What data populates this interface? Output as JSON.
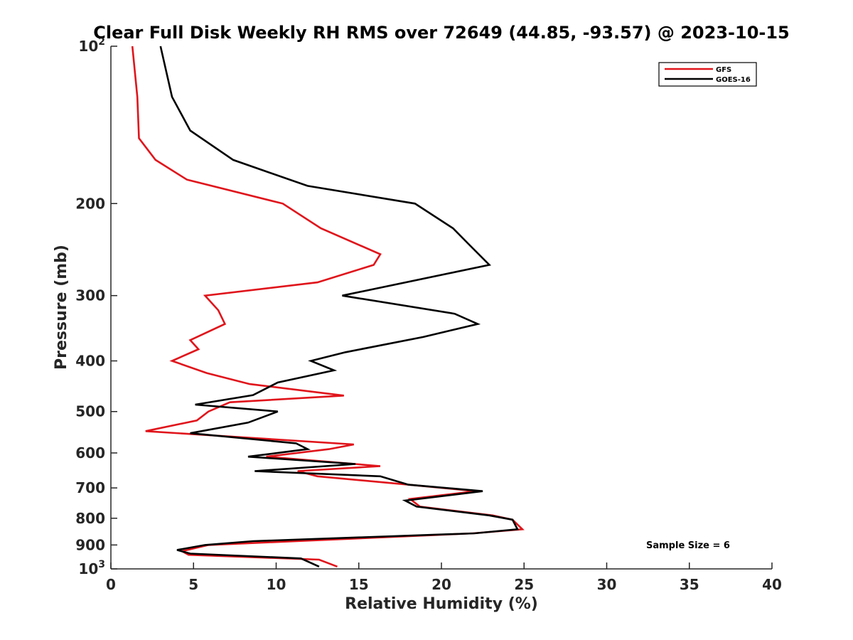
{
  "chart_data": {
    "type": "line",
    "title": "Clear Full Disk Weekly RH RMS over 72649 (44.85, -93.57) @ 2023-10-15",
    "xlabel": "Relative Humidity (%)",
    "ylabel": "Pressure (mb)",
    "xlim": [
      0,
      40
    ],
    "ylim": [
      100,
      1000
    ],
    "yscale": "log",
    "y_reversed": true,
    "x_ticks": [
      0,
      5,
      10,
      15,
      20,
      25,
      30,
      35,
      40
    ],
    "x_tick_labels": [
      "0",
      "5",
      "10",
      "15",
      "20",
      "25",
      "30",
      "35",
      "40"
    ],
    "y_ticks": [
      100,
      200,
      300,
      400,
      500,
      600,
      700,
      800,
      900,
      1000
    ],
    "y_tick_labels": [
      {
        "base": "10",
        "exp": "2"
      },
      {
        "base": "200",
        "exp": ""
      },
      {
        "base": "300",
        "exp": ""
      },
      {
        "base": "400",
        "exp": ""
      },
      {
        "base": "500",
        "exp": ""
      },
      {
        "base": "600",
        "exp": ""
      },
      {
        "base": "700",
        "exp": ""
      },
      {
        "base": "800",
        "exp": ""
      },
      {
        "base": "900",
        "exp": ""
      },
      {
        "base": "10",
        "exp": "3"
      }
    ],
    "grid": false,
    "legend_position": "top-right",
    "annotation": "Sample Size = 6",
    "series": [
      {
        "name": "GFS",
        "color": "#e0141b",
        "points": [
          [
            1.3,
            100
          ],
          [
            1.6,
            125
          ],
          [
            1.7,
            150
          ],
          [
            2.7,
            165
          ],
          [
            4.6,
            180
          ],
          [
            10.4,
            200
          ],
          [
            12.7,
            223
          ],
          [
            16.3,
            250
          ],
          [
            15.9,
            262
          ],
          [
            12.5,
            283
          ],
          [
            5.7,
            300
          ],
          [
            6.5,
            320
          ],
          [
            6.9,
            340
          ],
          [
            4.8,
            365
          ],
          [
            5.3,
            380
          ],
          [
            3.7,
            400
          ],
          [
            5.8,
            422
          ],
          [
            8.4,
            443
          ],
          [
            14.1,
            466
          ],
          [
            7.2,
            480
          ],
          [
            5.9,
            500
          ],
          [
            5.2,
            520
          ],
          [
            2.1,
            545
          ],
          [
            14.7,
            578
          ],
          [
            13.2,
            590
          ],
          [
            9.4,
            610
          ],
          [
            16.3,
            636
          ],
          [
            11.3,
            650
          ],
          [
            12.5,
            665
          ],
          [
            18.0,
            690
          ],
          [
            22.1,
            710
          ],
          [
            18.1,
            735
          ],
          [
            18.7,
            760
          ],
          [
            23.1,
            790
          ],
          [
            24.3,
            805
          ],
          [
            24.9,
            840
          ],
          [
            21.9,
            855
          ],
          [
            5.9,
            900
          ],
          [
            4.3,
            925
          ],
          [
            4.7,
            940
          ],
          [
            12.6,
            960
          ],
          [
            13.7,
            990
          ]
        ]
      },
      {
        "name": "GOES-16",
        "color": "#000000",
        "points": [
          [
            3.0,
            100
          ],
          [
            3.7,
            125
          ],
          [
            4.8,
            145
          ],
          [
            7.4,
            165
          ],
          [
            11.9,
            185
          ],
          [
            18.4,
            200
          ],
          [
            20.7,
            223
          ],
          [
            21.7,
            240
          ],
          [
            22.9,
            262
          ],
          [
            14.0,
            300
          ],
          [
            20.8,
            325
          ],
          [
            22.2,
            340
          ],
          [
            18.9,
            360
          ],
          [
            14.2,
            385
          ],
          [
            12.1,
            400
          ],
          [
            13.5,
            417
          ],
          [
            10.1,
            440
          ],
          [
            8.6,
            465
          ],
          [
            5.1,
            485
          ],
          [
            10.1,
            500
          ],
          [
            8.3,
            525
          ],
          [
            4.8,
            550
          ],
          [
            11.2,
            575
          ],
          [
            11.9,
            590
          ],
          [
            8.3,
            610
          ],
          [
            14.8,
            630
          ],
          [
            8.7,
            650
          ],
          [
            16.3,
            665
          ],
          [
            18.0,
            690
          ],
          [
            22.5,
            710
          ],
          [
            17.8,
            740
          ],
          [
            18.5,
            760
          ],
          [
            22.9,
            790
          ],
          [
            24.3,
            805
          ],
          [
            24.6,
            840
          ],
          [
            22.0,
            855
          ],
          [
            8.6,
            885
          ],
          [
            5.7,
            900
          ],
          [
            4.0,
            920
          ],
          [
            4.8,
            935
          ],
          [
            11.5,
            955
          ],
          [
            12.6,
            990
          ]
        ]
      }
    ]
  }
}
